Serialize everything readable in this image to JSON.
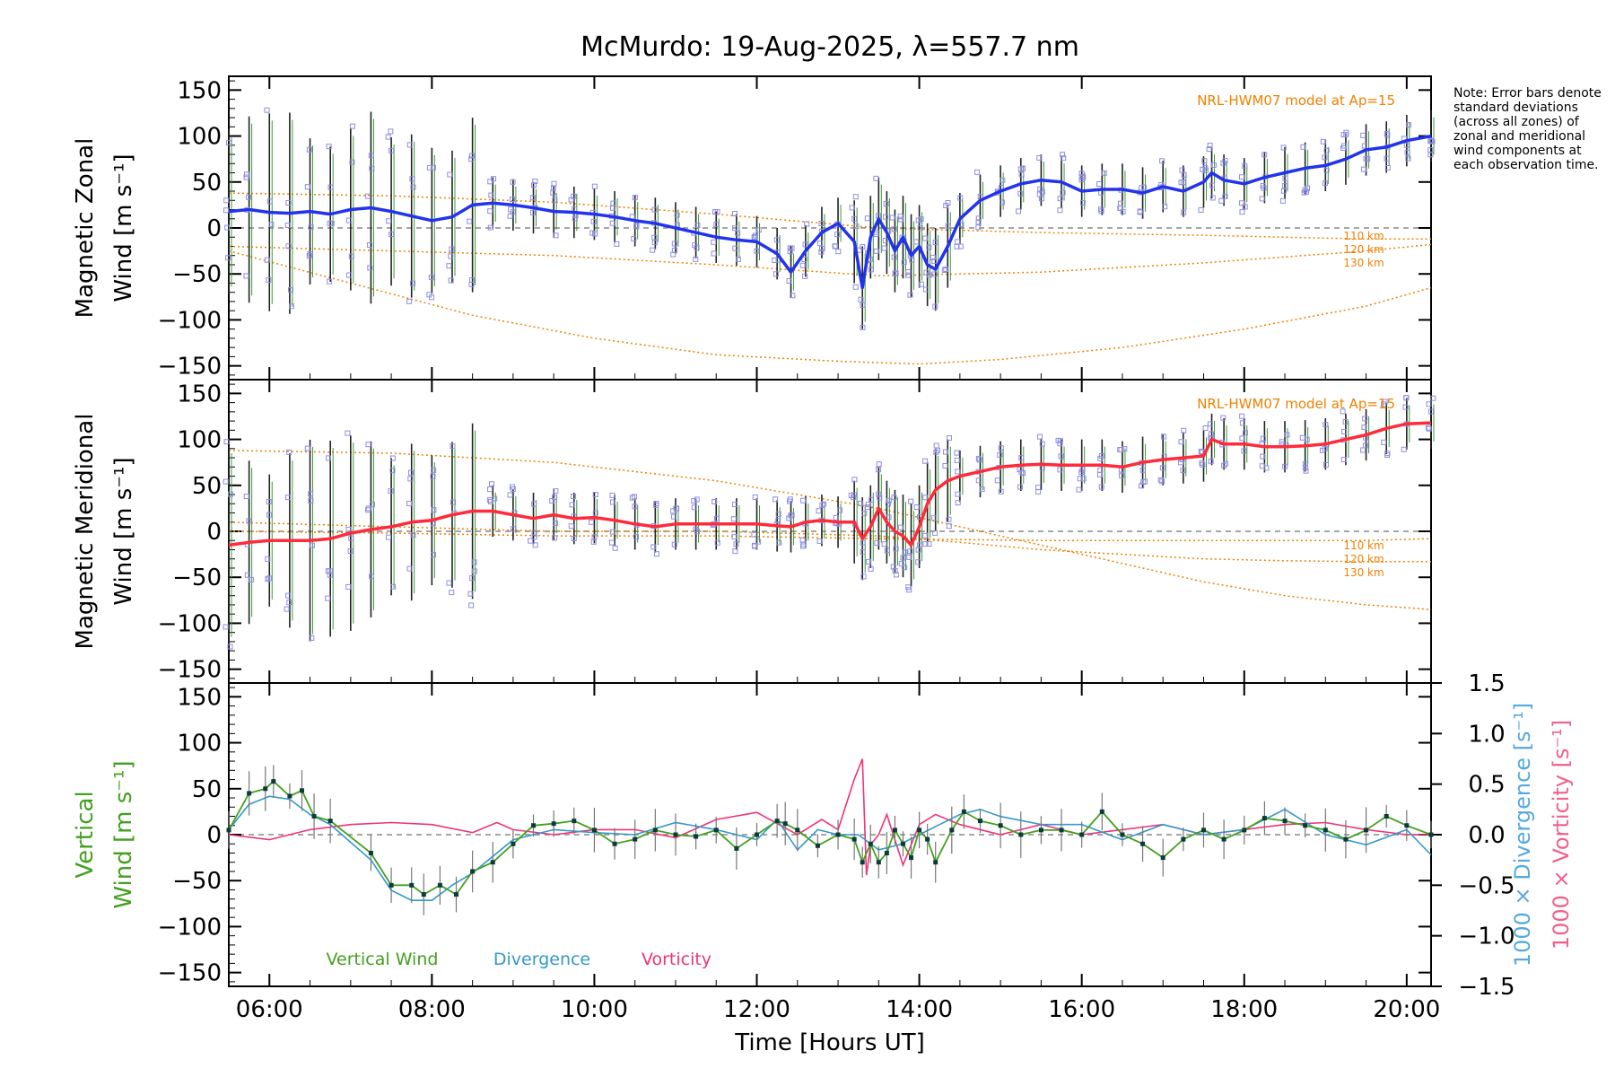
{
  "colors": {
    "zonal": "#2233ee",
    "meridional": "#ff2a3a",
    "vertical": "#44a020",
    "divergence": "#3399cc",
    "vorticity": "#ee3377",
    "model": "#f08000",
    "scatter": "#8e8ee0",
    "errorbar": "#222222",
    "zero": "#888888",
    "divergence_axis": "#55aadd",
    "vorticity_axis": "#f0608a"
  },
  "chart_data": [
    {
      "type": "line",
      "panel": "zonal",
      "title": "McMurdo: 19-Aug-2025, λ=557.7 nm",
      "ylabel_line1": "Magnetic Zonal",
      "ylabel_line2": "Wind [m s⁻¹]",
      "xlim": [
        5.5,
        20.3
      ],
      "ylim": [
        -165,
        165
      ],
      "yticks": [
        -150,
        -100,
        -50,
        0,
        50,
        100,
        150
      ],
      "model_label": "NRL-HWM07 model at Ap=15",
      "model_curve_labels": [
        "110 km",
        "120 km",
        "130 km"
      ],
      "series": {
        "name": "Magnetic Zonal Wind",
        "x": [
          5.5,
          5.75,
          6.0,
          6.25,
          6.5,
          6.75,
          7.0,
          7.25,
          7.5,
          7.75,
          8.0,
          8.25,
          8.5,
          8.75,
          9.0,
          9.25,
          9.5,
          9.75,
          10.0,
          10.25,
          10.5,
          10.75,
          11.0,
          11.25,
          11.5,
          11.75,
          12.0,
          12.25,
          12.42,
          12.6,
          12.8,
          13.0,
          13.2,
          13.3,
          13.4,
          13.5,
          13.6,
          13.7,
          13.8,
          13.9,
          14.0,
          14.1,
          14.2,
          14.35,
          14.5,
          14.75,
          15.0,
          15.25,
          15.5,
          15.75,
          16.0,
          16.25,
          16.5,
          16.75,
          17.0,
          17.25,
          17.5,
          17.6,
          17.75,
          18.0,
          18.25,
          18.5,
          18.75,
          19.0,
          19.25,
          19.5,
          19.75,
          20.0,
          20.3
        ],
        "y": [
          18,
          20,
          17,
          16,
          18,
          15,
          20,
          22,
          18,
          13,
          8,
          12,
          25,
          27,
          25,
          22,
          18,
          17,
          15,
          12,
          8,
          5,
          0,
          -5,
          -10,
          -13,
          -15,
          -28,
          -48,
          -25,
          -5,
          5,
          -15,
          -65,
          -10,
          10,
          -5,
          -25,
          -10,
          -30,
          -20,
          -40,
          -45,
          -20,
          10,
          30,
          40,
          48,
          52,
          50,
          40,
          42,
          42,
          38,
          45,
          40,
          50,
          60,
          52,
          48,
          55,
          60,
          65,
          68,
          75,
          85,
          88,
          95,
          100
        ]
      },
      "model_curves": [
        {
          "name": "model zonal 1",
          "x": [
            5.5,
            7.5,
            9.5,
            11.5,
            13.5,
            15.5,
            17.5,
            19.5,
            20.3
          ],
          "y": [
            38,
            35,
            28,
            15,
            0,
            -5,
            -8,
            -12,
            -12
          ]
        },
        {
          "name": "model zonal 2",
          "x": [
            5.5,
            7.5,
            9.5,
            11.5,
            13.5,
            15.5,
            17.5,
            19.5,
            20.3
          ],
          "y": [
            -20,
            -25,
            -30,
            -40,
            -52,
            -48,
            -38,
            -25,
            -18
          ]
        },
        {
          "name": "model zonal 3",
          "x": [
            5.5,
            7,
            8.5,
            10,
            11.5,
            13,
            14,
            15,
            16.5,
            18,
            19.5,
            20.3
          ],
          "y": [
            -25,
            -60,
            -95,
            -120,
            -138,
            -145,
            -148,
            -143,
            -130,
            -110,
            -85,
            -65
          ]
        }
      ]
    },
    {
      "type": "line",
      "panel": "meridional",
      "ylabel_line1": "Magnetic Meridional",
      "ylabel_line2": "Wind [m s⁻¹]",
      "xlim": [
        5.5,
        20.3
      ],
      "ylim": [
        -165,
        165
      ],
      "yticks": [
        -150,
        -100,
        -50,
        0,
        50,
        100,
        150
      ],
      "model_label": "NRL-HWM07 model at Ap=15",
      "model_curve_labels": [
        "110 km",
        "120 km",
        "130 km"
      ],
      "series": {
        "name": "Magnetic Meridional Wind",
        "x": [
          5.5,
          5.75,
          6.0,
          6.25,
          6.5,
          6.75,
          7.0,
          7.25,
          7.5,
          7.75,
          8.0,
          8.25,
          8.5,
          8.75,
          9.0,
          9.25,
          9.5,
          9.75,
          10.0,
          10.25,
          10.5,
          10.75,
          11.0,
          11.25,
          11.5,
          11.75,
          12.0,
          12.25,
          12.42,
          12.6,
          12.8,
          13.0,
          13.2,
          13.3,
          13.4,
          13.5,
          13.6,
          13.7,
          13.8,
          13.9,
          14.0,
          14.1,
          14.2,
          14.35,
          14.5,
          14.75,
          15.0,
          15.25,
          15.5,
          15.75,
          16.0,
          16.25,
          16.5,
          16.75,
          17.0,
          17.25,
          17.5,
          17.6,
          17.75,
          18.0,
          18.25,
          18.5,
          18.75,
          19.0,
          19.25,
          19.5,
          19.75,
          20.0,
          20.3
        ],
        "y": [
          -15,
          -12,
          -10,
          -10,
          -10,
          -8,
          -2,
          2,
          5,
          10,
          12,
          18,
          22,
          22,
          18,
          14,
          18,
          14,
          15,
          12,
          8,
          5,
          8,
          8,
          8,
          8,
          8,
          6,
          5,
          10,
          12,
          10,
          10,
          -8,
          5,
          25,
          10,
          0,
          -5,
          -15,
          5,
          30,
          45,
          55,
          60,
          65,
          70,
          72,
          73,
          72,
          72,
          72,
          70,
          75,
          78,
          80,
          82,
          100,
          95,
          95,
          92,
          92,
          93,
          95,
          100,
          105,
          112,
          117,
          118
        ]
      },
      "model_curves": [
        {
          "name": "model merid 1",
          "x": [
            5.5,
            7.5,
            9.5,
            11.5,
            13.5,
            14.5,
            15.5,
            16.5,
            17.5,
            18.5,
            19.5,
            20.3
          ],
          "y": [
            88,
            85,
            75,
            55,
            25,
            5,
            -15,
            -35,
            -55,
            -70,
            -80,
            -85
          ]
        },
        {
          "name": "model merid 2",
          "x": [
            5.5,
            7.5,
            9.5,
            11.5,
            13.5,
            14.5,
            15.5,
            16.5,
            17.5,
            18.5,
            19.5,
            20.3
          ],
          "y": [
            10,
            5,
            0,
            0,
            -5,
            -12,
            -20,
            -25,
            -30,
            -32,
            -33,
            -33
          ]
        },
        {
          "name": "model merid 3",
          "x": [
            5.5,
            7.5,
            9.5,
            11.5,
            13.5,
            15.5,
            17.5,
            19.5,
            20.3
          ],
          "y": [
            0,
            -2,
            -5,
            -5,
            -8,
            -10,
            -10,
            -10,
            -8
          ]
        }
      ]
    },
    {
      "type": "line",
      "panel": "vertical",
      "xlabel": "Time [Hours UT]",
      "ylabel_line1": "Vertical",
      "ylabel_line2": "Wind [m s⁻¹]",
      "right_label_divergence": "1000 × Divergence [s⁻¹]",
      "right_label_vorticity": "1000 × Vorticity [s⁻¹]",
      "xlim": [
        5.5,
        20.3
      ],
      "xticks": [
        6,
        8,
        10,
        12,
        14,
        16,
        18,
        20
      ],
      "xtick_labels": [
        "06:00",
        "08:00",
        "10:00",
        "12:00",
        "14:00",
        "16:00",
        "18:00",
        "20:00"
      ],
      "ylim": [
        -165,
        165
      ],
      "yticks": [
        -150,
        -100,
        -50,
        0,
        50,
        100,
        150
      ],
      "y2lim": [
        -1.5,
        1.5
      ],
      "y2ticks": [
        -1.5,
        -1.0,
        -0.5,
        0.0,
        0.5,
        1.0,
        1.5
      ],
      "y2tick_labels": [
        "−1.5",
        "−1.0",
        "−0.5",
        "0.0",
        "0.5",
        "1.0",
        "1.5"
      ],
      "legend": [
        "Vertical Wind",
        "Divergence",
        "Vorticity"
      ],
      "series": [
        {
          "name": "Vertical Wind",
          "axis": "left",
          "x": [
            5.5,
            5.75,
            5.95,
            6.05,
            6.25,
            6.4,
            6.55,
            6.75,
            7.25,
            7.5,
            7.75,
            7.9,
            8.1,
            8.3,
            8.5,
            8.75,
            9.0,
            9.25,
            9.5,
            9.75,
            10.0,
            10.25,
            10.5,
            10.75,
            11.0,
            11.25,
            11.5,
            11.75,
            12.0,
            12.25,
            12.35,
            12.5,
            12.75,
            13.0,
            13.2,
            13.3,
            13.4,
            13.5,
            13.6,
            13.7,
            13.8,
            13.9,
            14.0,
            14.1,
            14.2,
            14.4,
            14.55,
            14.75,
            15.0,
            15.25,
            15.5,
            15.75,
            16.0,
            16.25,
            16.5,
            16.75,
            17.0,
            17.25,
            17.5,
            17.75,
            18.0,
            18.25,
            18.5,
            18.75,
            19.0,
            19.25,
            19.5,
            19.75,
            20.0,
            20.3
          ],
          "y": [
            5,
            45,
            50,
            58,
            42,
            48,
            20,
            15,
            -20,
            -55,
            -55,
            -65,
            -55,
            -65,
            -40,
            -30,
            -10,
            10,
            12,
            15,
            5,
            -10,
            -5,
            5,
            0,
            -2,
            5,
            -15,
            0,
            15,
            12,
            5,
            -12,
            0,
            -5,
            -30,
            -10,
            -30,
            -20,
            5,
            -10,
            -25,
            5,
            -5,
            -30,
            5,
            25,
            15,
            10,
            0,
            5,
            5,
            0,
            25,
            0,
            -10,
            -25,
            -5,
            5,
            -5,
            5,
            18,
            15,
            10,
            5,
            -5,
            5,
            20,
            10,
            0
          ]
        },
        {
          "name": "Divergence",
          "axis": "right",
          "x": [
            5.5,
            5.75,
            6.0,
            6.25,
            6.5,
            6.75,
            7.25,
            7.5,
            7.75,
            8.0,
            8.25,
            8.5,
            9.0,
            9.5,
            10.0,
            10.5,
            11.0,
            11.5,
            12.0,
            12.25,
            12.5,
            12.75,
            13.0,
            13.25,
            13.5,
            13.75,
            14.0,
            14.25,
            14.5,
            14.75,
            15.0,
            15.5,
            16.0,
            16.5,
            17.0,
            17.5,
            18.0,
            18.5,
            19.0,
            19.5,
            20.0,
            20.3
          ],
          "y": [
            0.05,
            0.3,
            0.38,
            0.35,
            0.2,
            0.1,
            -0.25,
            -0.55,
            -0.65,
            -0.65,
            -0.5,
            -0.38,
            -0.05,
            0.05,
            0.02,
            0.0,
            0.12,
            0.05,
            -0.05,
            0.15,
            -0.15,
            0.05,
            0.0,
            0.0,
            -0.15,
            -0.1,
            0.0,
            0.1,
            0.2,
            0.25,
            0.18,
            0.1,
            0.1,
            -0.05,
            0.1,
            0.0,
            0.05,
            0.25,
            0.0,
            -0.1,
            0.05,
            -0.2
          ]
        },
        {
          "name": "Vorticity",
          "axis": "right",
          "x": [
            5.5,
            6.0,
            6.5,
            7.0,
            7.5,
            8.0,
            8.5,
            8.8,
            9.0,
            9.5,
            10.0,
            10.5,
            11.0,
            11.5,
            12.0,
            12.5,
            12.8,
            13.0,
            13.2,
            13.3,
            13.35,
            13.4,
            13.5,
            13.6,
            13.8,
            14.0,
            14.2,
            14.5,
            15.0,
            15.5,
            16.0,
            16.5,
            17.0,
            17.5,
            18.0,
            18.5,
            19.0,
            19.5,
            20.0,
            20.3
          ],
          "y": [
            0.0,
            -0.05,
            0.05,
            0.1,
            0.12,
            0.1,
            0.02,
            0.12,
            0.05,
            0.0,
            0.05,
            0.05,
            -0.03,
            0.15,
            0.22,
            0.0,
            0.15,
            0.05,
            0.55,
            0.75,
            -0.4,
            -0.1,
            0.0,
            0.2,
            -0.3,
            0.1,
            0.2,
            0.1,
            0.0,
            0.1,
            0.0,
            0.05,
            0.1,
            0.0,
            0.05,
            0.1,
            0.12,
            0.05,
            0.0,
            0.0
          ]
        }
      ]
    }
  ],
  "note_text": "Note: Error bars denote standard deviations (across all zones) of zonal and meridional wind components at each observation time."
}
